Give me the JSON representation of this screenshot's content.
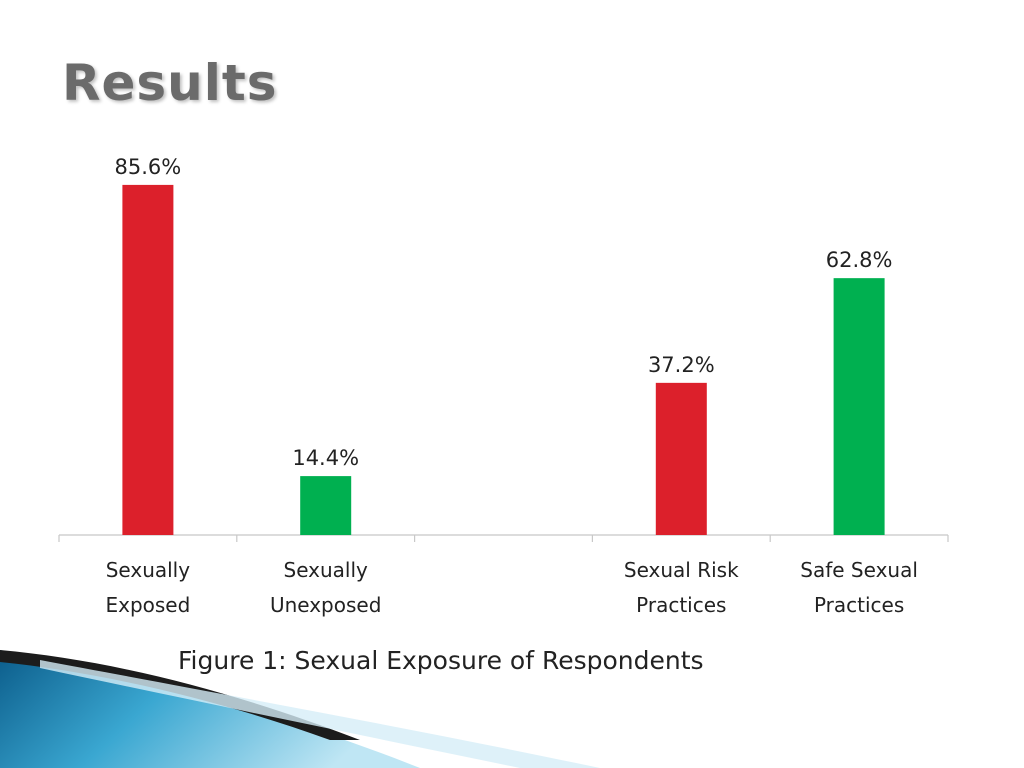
{
  "slide": {
    "title": "Results",
    "caption": "Figure 1: Sexual Exposure of Respondents"
  },
  "colors": {
    "red": "#dc202b",
    "green": "#00b050",
    "title": "#6b6b6b",
    "swoosh_light": "#5fc8e8",
    "swoosh_dark": "#0b5c8a"
  },
  "chart_data": {
    "type": "bar",
    "categories": [
      [
        "Sexually",
        "Exposed"
      ],
      [
        "Sexually",
        "Unexposed"
      ],
      [
        "",
        ""
      ],
      [
        "Sexual Risk",
        "Practices"
      ],
      [
        "Safe Sexual",
        "Practices"
      ]
    ],
    "values": [
      85.6,
      14.4,
      null,
      37.2,
      62.8
    ],
    "value_labels": [
      "85.6%",
      "14.4%",
      "",
      "37.2%",
      "62.8%"
    ],
    "bar_colors": [
      "#dc202b",
      "#00b050",
      null,
      "#dc202b",
      "#00b050"
    ],
    "ylim": [
      0,
      100
    ],
    "grid": false,
    "legend": "none"
  }
}
